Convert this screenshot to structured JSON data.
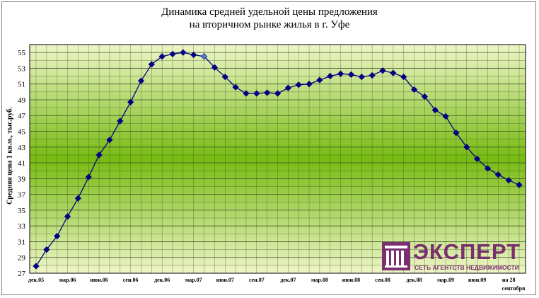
{
  "chart_data": {
    "type": "line",
    "title_line1": "Динамика средней удельной цены предложения",
    "title_line2": "на вторичном рынке жилья в г. Уфе",
    "ylabel": "Средняя цена 1 кв.м., тыс.руб.",
    "xlabel": "",
    "ylim": [
      27,
      56
    ],
    "yticks": [
      27,
      29,
      31,
      33,
      35,
      37,
      39,
      41,
      43,
      45,
      47,
      49,
      51,
      53,
      55
    ],
    "grid": true,
    "xtick_labels": [
      "дек.05",
      "мар.06",
      "июн.06",
      "сен.06",
      "дек.06",
      "мар.07",
      "июн.07",
      "сен.07",
      "дек.07",
      "мар.08",
      "июн.08",
      "сен.08",
      "дек.08",
      "мар.09",
      "июн.09",
      "на 28"
    ],
    "xtick_last_line2": "сентября",
    "series": [
      {
        "name": "",
        "color": "#000080",
        "highlight_index": 16,
        "highlight_color": "#4f81bd",
        "values": [
          27.9,
          30.0,
          31.7,
          34.2,
          36.5,
          39.2,
          42.0,
          43.9,
          46.3,
          48.7,
          51.4,
          53.5,
          54.5,
          54.8,
          55.0,
          54.7,
          54.5,
          53.1,
          51.9,
          50.6,
          49.8,
          49.8,
          49.9,
          49.8,
          50.5,
          50.9,
          51.0,
          51.5,
          52.0,
          52.3,
          52.2,
          51.9,
          52.1,
          52.7,
          52.4,
          51.9,
          50.3,
          49.4,
          47.7,
          46.9,
          44.8,
          43.0,
          41.5,
          40.3,
          39.5,
          38.8,
          38.2
        ]
      }
    ]
  },
  "logo": {
    "name": "ЭКСПЕРТ",
    "tagline": "СЕТЬ АГЕНТСТВ НЕДВИЖИМОСТИ"
  }
}
